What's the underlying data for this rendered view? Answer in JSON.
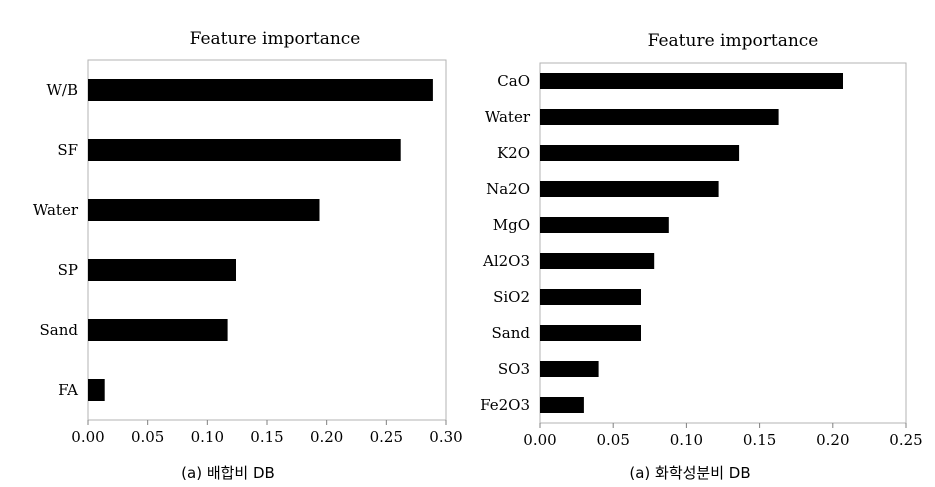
{
  "chart_data": [
    {
      "type": "bar",
      "orientation": "horizontal",
      "title": "Feature importance",
      "caption": "(a) 배합비 DB",
      "categories": [
        "W/B",
        "SF",
        "Water",
        "SP",
        "Sand",
        "FA"
      ],
      "values": [
        0.289,
        0.262,
        0.194,
        0.124,
        0.117,
        0.014
      ],
      "xlim": [
        0,
        0.3
      ],
      "xticks": [
        "0.00",
        "0.05",
        "0.10",
        "0.15",
        "0.20",
        "0.25",
        "0.30"
      ],
      "grid": false,
      "bar_color": "#000000"
    },
    {
      "type": "bar",
      "orientation": "horizontal",
      "title": "Feature importance",
      "caption": "(a) 화학성분비 DB",
      "categories": [
        "CaO",
        "Water",
        "K2O",
        "Na2O",
        "MgO",
        "Al2O3",
        "SiO2",
        "Sand",
        "SO3",
        "Fe2O3"
      ],
      "values": [
        0.207,
        0.163,
        0.136,
        0.122,
        0.088,
        0.078,
        0.069,
        0.069,
        0.04,
        0.03
      ],
      "xlim": [
        0,
        0.25
      ],
      "xticks": [
        "0.00",
        "0.05",
        "0.10",
        "0.15",
        "0.20",
        "0.25"
      ],
      "grid": false,
      "bar_color": "#000000"
    }
  ]
}
